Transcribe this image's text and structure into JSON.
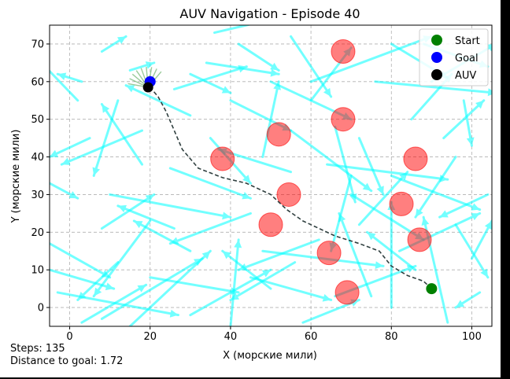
{
  "window": {
    "title": "AUV Navigation - Episode 40"
  },
  "status": {
    "steps": "Steps: 135",
    "distance": "Distance to goal: 1.72"
  },
  "colors": {
    "current": "#00ffff",
    "obstacle": "#ff0000",
    "path": "#2f3f3f",
    "start": "#008000",
    "goal": "#0000ff",
    "auv": "#000000",
    "sensor": "#228b22"
  },
  "chart_data": {
    "type": "scatter",
    "title": "AUV Navigation - Episode 40",
    "xlabel": "X (морские мили)",
    "ylabel": "Y (морские мили)",
    "xlim": [
      -5,
      105
    ],
    "ylim": [
      -5,
      75
    ],
    "xticks": [
      0,
      20,
      40,
      60,
      80,
      100
    ],
    "yticks": [
      0,
      10,
      20,
      30,
      40,
      50,
      60,
      70
    ],
    "grid": true,
    "legend_position": "top-right",
    "legend": [
      {
        "label": "Start",
        "color": "#008000"
      },
      {
        "label": "Goal",
        "color": "#0000ff"
      },
      {
        "label": "AUV",
        "color": "#000000"
      }
    ],
    "start": [
      90,
      5
    ],
    "goal": [
      20,
      60
    ],
    "auv": [
      19.5,
      58.5
    ],
    "obstacles": [
      [
        68,
        68
      ],
      [
        68,
        50
      ],
      [
        52,
        46
      ],
      [
        38,
        39.5
      ],
      [
        86,
        39.5
      ],
      [
        54.5,
        30
      ],
      [
        82.5,
        27.5
      ],
      [
        50,
        22
      ],
      [
        87,
        18
      ],
      [
        64.5,
        14.5
      ],
      [
        69,
        4
      ]
    ],
    "path": [
      [
        90,
        5
      ],
      [
        88,
        7
      ],
      [
        84,
        8.5
      ],
      [
        80,
        11
      ],
      [
        77,
        15
      ],
      [
        72,
        17
      ],
      [
        66,
        19
      ],
      [
        62,
        21
      ],
      [
        58,
        23
      ],
      [
        54,
        26
      ],
      [
        50,
        30
      ],
      [
        44,
        33
      ],
      [
        38,
        34.5
      ],
      [
        32,
        37
      ],
      [
        28,
        42
      ],
      [
        26,
        47
      ],
      [
        24,
        52
      ],
      [
        22,
        56
      ],
      [
        20,
        58.5
      ]
    ],
    "currents": [
      [
        -3,
        4,
        30,
        -6
      ],
      [
        -5,
        33,
        7,
        -4
      ],
      [
        3,
        60,
        -6,
        2
      ],
      [
        8,
        68,
        6,
        4
      ],
      [
        15,
        63,
        6,
        2
      ],
      [
        18,
        47,
        -20,
        -9
      ],
      [
        18,
        38,
        -10,
        16
      ],
      [
        20,
        23,
        -14,
        -20
      ],
      [
        10,
        30,
        30,
        -6
      ],
      [
        8,
        21,
        13,
        9
      ],
      [
        -5,
        17,
        15,
        -9
      ],
      [
        -5,
        10,
        16,
        -5
      ],
      [
        3,
        -4,
        16,
        10
      ],
      [
        8,
        -3,
        25,
        16
      ],
      [
        15,
        -5,
        20,
        20
      ],
      [
        26,
        21,
        -14,
        6
      ],
      [
        25,
        37,
        20,
        -8
      ],
      [
        30,
        51,
        -16,
        8
      ],
      [
        26,
        58,
        18,
        6
      ],
      [
        30,
        62,
        10,
        -5
      ],
      [
        40,
        55,
        15,
        -8
      ],
      [
        34,
        65,
        18,
        -3
      ],
      [
        42,
        70,
        10,
        -7
      ],
      [
        36,
        73,
        20,
        5
      ],
      [
        50,
        60,
        20,
        -10
      ],
      [
        55,
        47,
        20,
        -16
      ],
      [
        55,
        72,
        10,
        -16
      ],
      [
        60,
        60,
        30,
        12
      ],
      [
        40,
        -5,
        2,
        23
      ],
      [
        45,
        8,
        20,
        -6
      ],
      [
        30,
        -2,
        20,
        12
      ],
      [
        50,
        5,
        -12,
        10
      ],
      [
        56,
        12,
        -16,
        -10
      ],
      [
        66,
        3,
        20,
        8
      ],
      [
        62,
        18,
        -20,
        -8
      ],
      [
        70,
        30,
        18,
        -12
      ],
      [
        70,
        35,
        -5,
        -20
      ],
      [
        72,
        22,
        12,
        14
      ],
      [
        75,
        3,
        -8,
        22
      ],
      [
        80,
        0,
        0,
        28
      ],
      [
        82,
        15,
        20,
        10
      ],
      [
        86,
        10,
        -12,
        10
      ],
      [
        94,
        -4,
        -6,
        28
      ],
      [
        96,
        40,
        -10,
        -16
      ],
      [
        98,
        55,
        2,
        -12
      ],
      [
        96,
        22,
        8,
        -14
      ],
      [
        100,
        13,
        5,
        10
      ],
      [
        90,
        60,
        16,
        10
      ],
      [
        85,
        50,
        10,
        12
      ],
      [
        76,
        60,
        30,
        -3
      ],
      [
        80,
        70,
        14,
        -9
      ],
      [
        88,
        70,
        16,
        -6
      ],
      [
        93,
        45,
        10,
        10
      ],
      [
        64,
        38,
        30,
        -4
      ],
      [
        80,
        35,
        22,
        -9
      ],
      [
        48,
        15,
        30,
        -4
      ],
      [
        55,
        36,
        -18,
        6
      ],
      [
        12,
        55,
        -6,
        -20
      ],
      [
        2,
        55,
        -9,
        10
      ],
      [
        5,
        45,
        -10,
        -5
      ],
      [
        60,
        55,
        10,
        14
      ],
      [
        66,
        48,
        5,
        -20
      ],
      [
        72,
        45,
        6,
        -15
      ],
      [
        35,
        45,
        10,
        -12
      ],
      [
        45,
        25,
        -20,
        -8
      ],
      [
        30,
        15,
        -14,
        8
      ],
      [
        20,
        8,
        22,
        -4
      ],
      [
        12,
        12,
        -10,
        -10
      ],
      [
        58,
        -4,
        14,
        6
      ],
      [
        104,
        30,
        -12,
        -6
      ],
      [
        102,
        4,
        -6,
        -4
      ],
      [
        48,
        40,
        4,
        20
      ]
    ]
  }
}
